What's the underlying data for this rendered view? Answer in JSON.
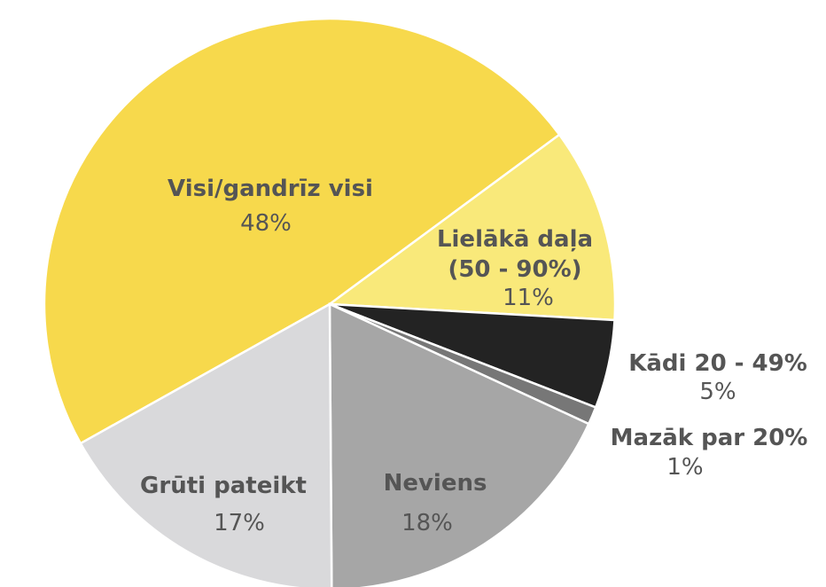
{
  "chart_data": {
    "type": "pie",
    "categories": [
      "Visi/gandrīz visi",
      "Lielākā daļa (50 - 90%)",
      "Kādi 20 - 49%",
      "Mazāk par 20%",
      "Neviens",
      "Grūti pateikt"
    ],
    "values": [
      48,
      11,
      5,
      1,
      18,
      17
    ],
    "value_labels": [
      "48%",
      "11%",
      "5%",
      "1%",
      "18%",
      "17%"
    ],
    "colors": [
      "#f7d94c",
      "#f9e97a",
      "#232323",
      "#777777",
      "#a6a6a6",
      "#d9d9db"
    ]
  }
}
